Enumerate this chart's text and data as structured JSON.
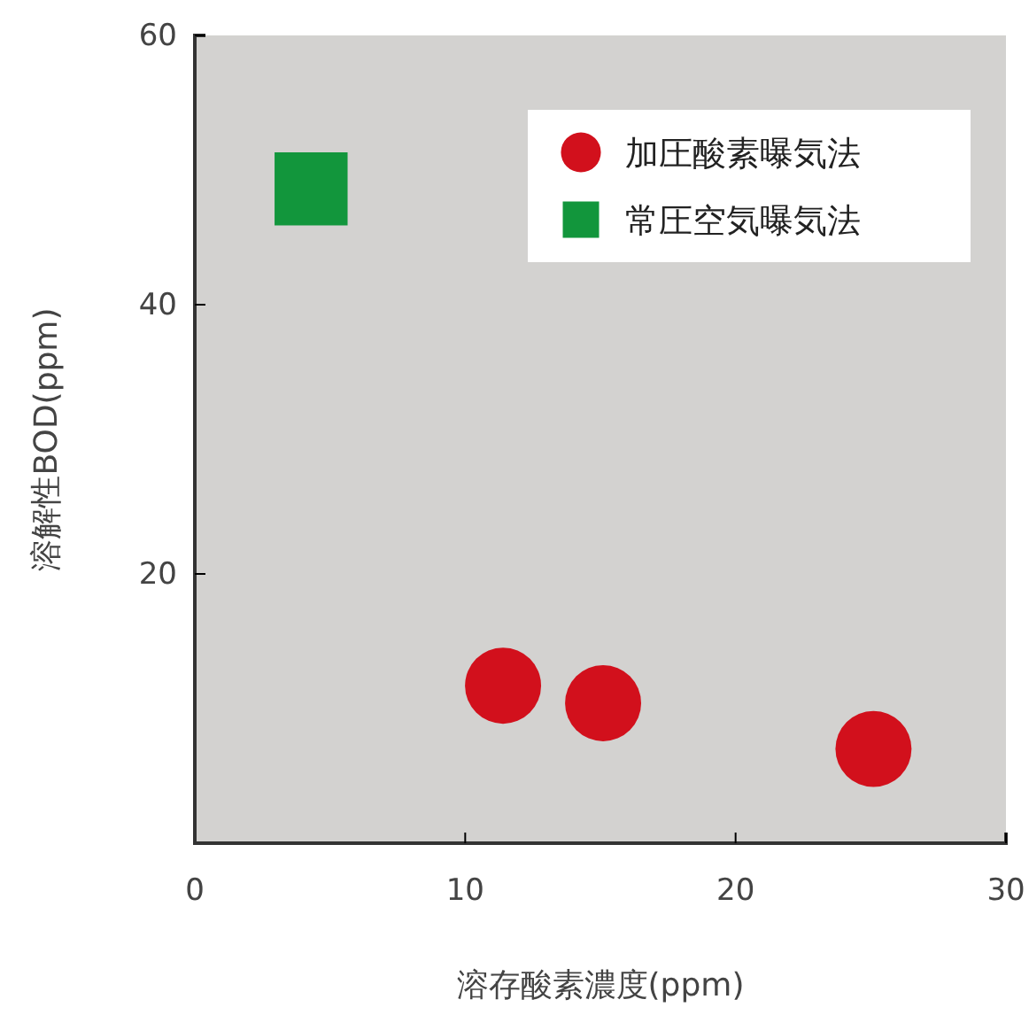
{
  "chart_data": {
    "type": "scatter",
    "xlabel": "溶存酸素濃度(ppm)",
    "ylabel": "溶解性BOD(ppm)",
    "xlim": [
      0,
      30
    ],
    "xticks": [
      0,
      10,
      20,
      30
    ],
    "ylim": [
      0,
      60
    ],
    "yticks": [
      20,
      40,
      60
    ],
    "legend": "top right",
    "grid": false,
    "series": [
      {
        "name": "加圧酸素曝気法",
        "color": "#d2101c",
        "marker": "circle",
        "x": [
          11.4,
          15.1,
          25.1
        ],
        "values": [
          11.7,
          10.4,
          7.0
        ]
      },
      {
        "name": "常圧空気曝気法",
        "color": "#12963c",
        "marker": "square",
        "x": [
          4.3
        ],
        "values": [
          48.6
        ]
      }
    ]
  }
}
